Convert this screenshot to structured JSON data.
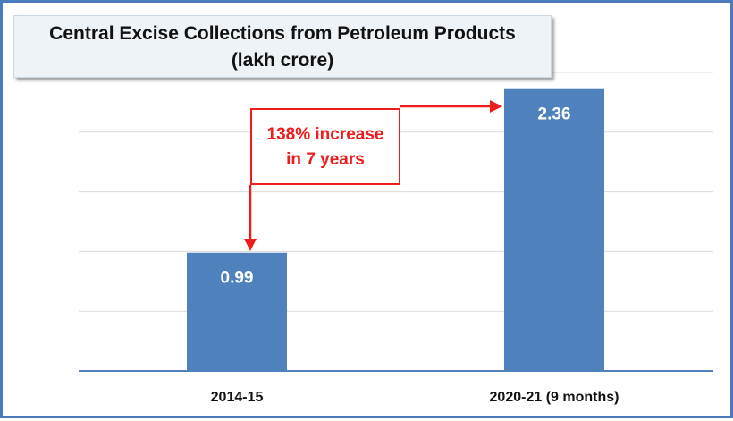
{
  "chart_data": {
    "type": "bar",
    "title": "Central Excise Collections from Petroleum Products",
    "subtitle": "(lakh  crore)",
    "categories": [
      "2014-15",
      "2020-21 (9 months)"
    ],
    "values": [
      0.99,
      2.36
    ],
    "data_labels": [
      "0.99",
      "2.36"
    ],
    "ylim": [
      0,
      2.5
    ],
    "grid": true,
    "bar_color": "#4f81bd",
    "annotation": {
      "line1": "138% increase",
      "line2": "in 7 years",
      "color": "#ee1c1c"
    }
  }
}
